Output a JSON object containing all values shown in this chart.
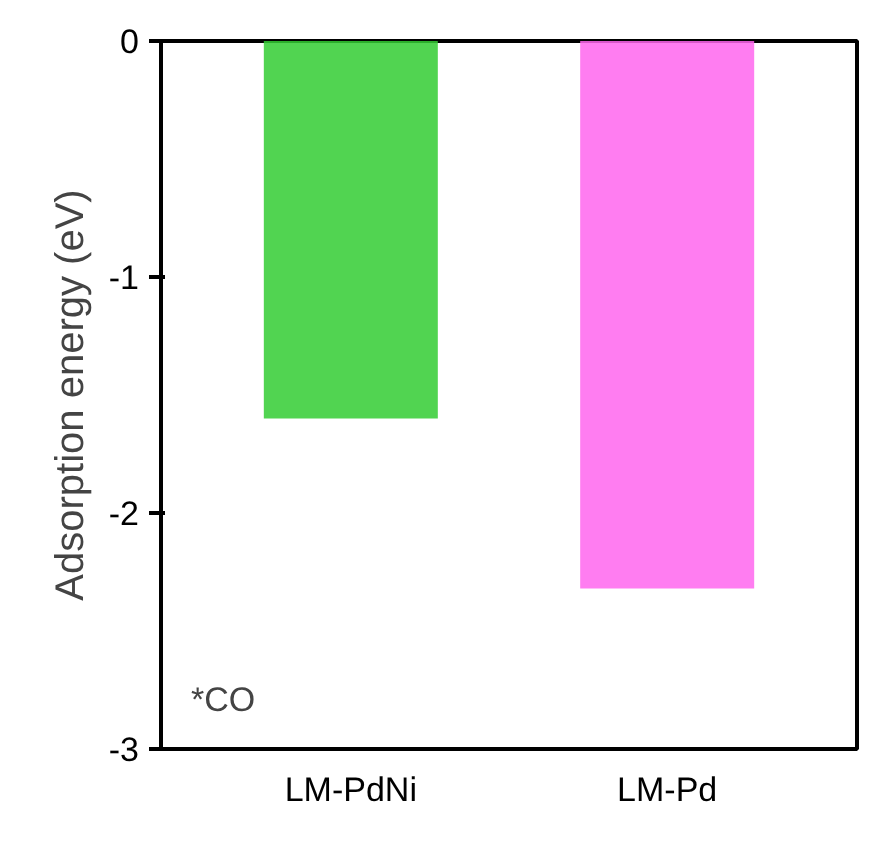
{
  "chart_data": {
    "type": "bar",
    "ylabel": "Adsorption energy (eV)",
    "categories": [
      "LM-PdNi",
      "LM-Pd"
    ],
    "values": [
      -1.6,
      -2.32
    ],
    "colors": [
      "#33cc33",
      "#ff66ee"
    ],
    "ylim": [
      -3,
      0
    ],
    "yticks": [
      0,
      -1,
      -2,
      -3
    ],
    "grid": false,
    "annotations": [
      "*CO"
    ]
  }
}
